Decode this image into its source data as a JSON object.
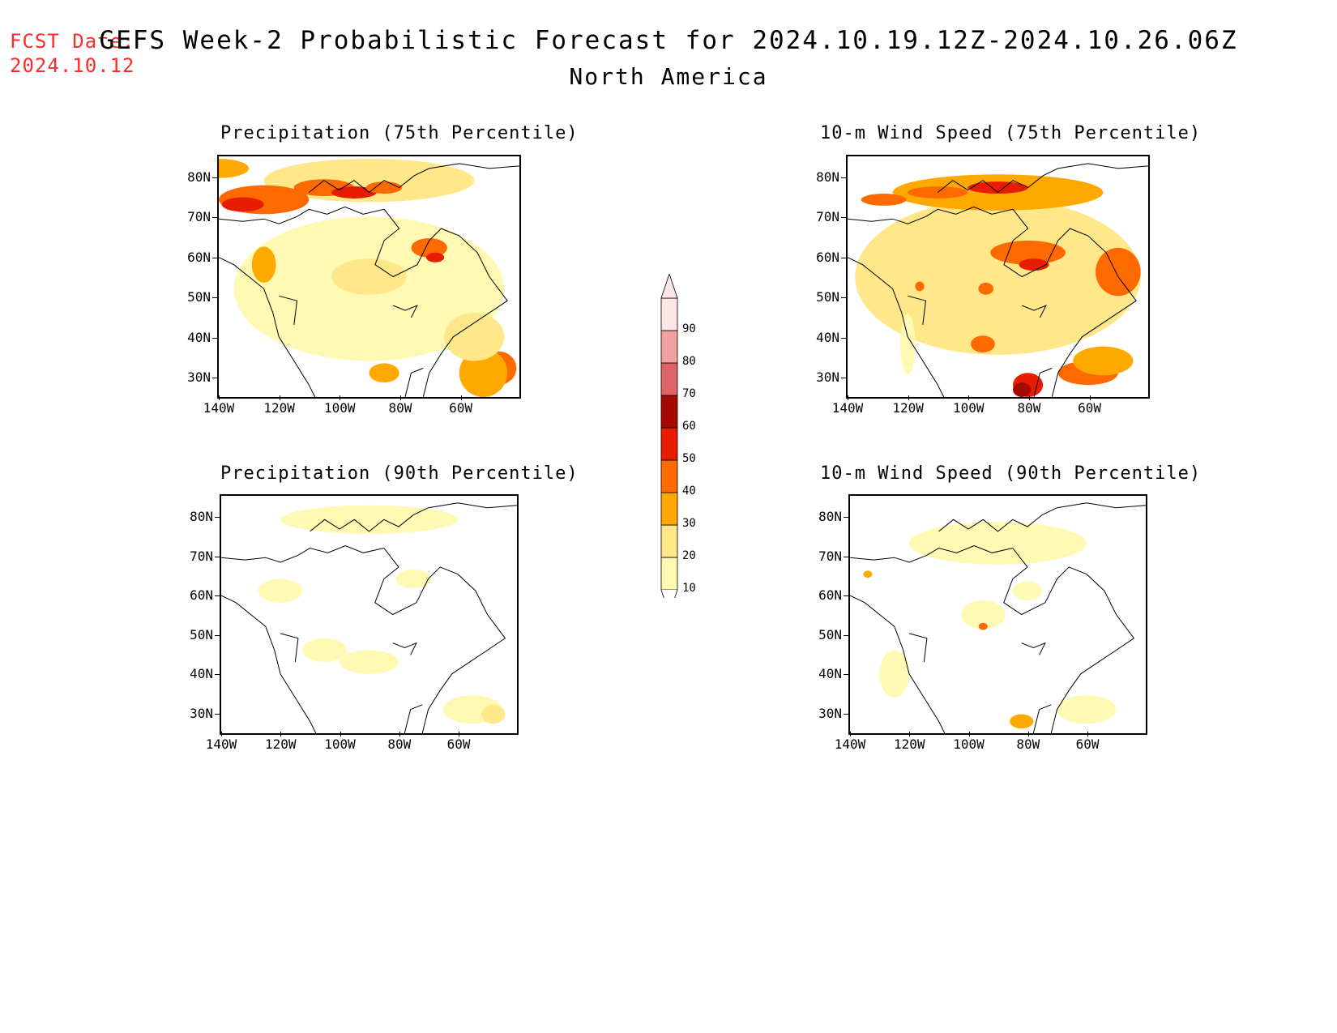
{
  "header": {
    "fcst_label": "FCST Date:",
    "fcst_date": "2024.10.12",
    "title": "GEFS Week-2 Probabilistic Forecast for 2024.10.19.12Z-2024.10.26.06Z",
    "subtitle": "North America"
  },
  "panels": [
    {
      "title": "Precipitation (75th Percentile)",
      "variable": "precip75"
    },
    {
      "title": "10-m Wind Speed (75th Percentile)",
      "variable": "wind75"
    },
    {
      "title": "Precipitation (90th Percentile)",
      "variable": "precip90"
    },
    {
      "title": "10-m Wind Speed (90th Percentile)",
      "variable": "wind90"
    }
  ],
  "axes": {
    "lat_labels": [
      "80N",
      "70N",
      "60N",
      "50N",
      "40N",
      "30N"
    ],
    "lon_labels": [
      "140W",
      "120W",
      "100W",
      "80W",
      "60W"
    ]
  },
  "colorbar": {
    "levels": [
      "10",
      "20",
      "30",
      "40",
      "50",
      "60",
      "70",
      "80",
      "90"
    ],
    "colors": [
      "#fff9b4",
      "#ffe78a",
      "#ffa800",
      "#ff6a00",
      "#e81c00",
      "#a50a00",
      "#dc6464",
      "#f2a0a0",
      "#ffe6e6"
    ]
  },
  "palette": {
    "below10": "#ffffff",
    "p10": "#fff9b4",
    "p20": "#ffe78a",
    "p30": "#ffa800",
    "p40": "#ff6a00",
    "p50": "#e81c00",
    "p60": "#a50a00",
    "fcst_color": "#ff2a2a"
  }
}
